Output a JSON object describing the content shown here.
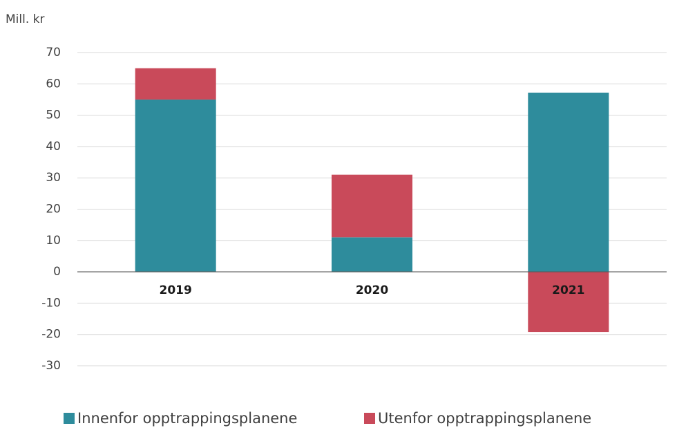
{
  "chart_data": {
    "type": "stacked_bar",
    "y_label": "Mill. kr",
    "categories": [
      "2019",
      "2020",
      "2021"
    ],
    "series": [
      {
        "name": "Innenfor opptrappingsplanene",
        "color": "#2e8c9c",
        "values": [
          55,
          11,
          57.2
        ]
      },
      {
        "name": "Utenfor opptrappingsplanene",
        "color": "#c94a5a",
        "values": [
          10,
          20,
          -19.2
        ]
      }
    ],
    "ylim": [
      -30,
      70
    ],
    "yticks": [
      -30,
      -20,
      -10,
      0,
      10,
      20,
      30,
      40,
      50,
      60,
      70
    ],
    "grid": true,
    "legend": "bottom"
  }
}
